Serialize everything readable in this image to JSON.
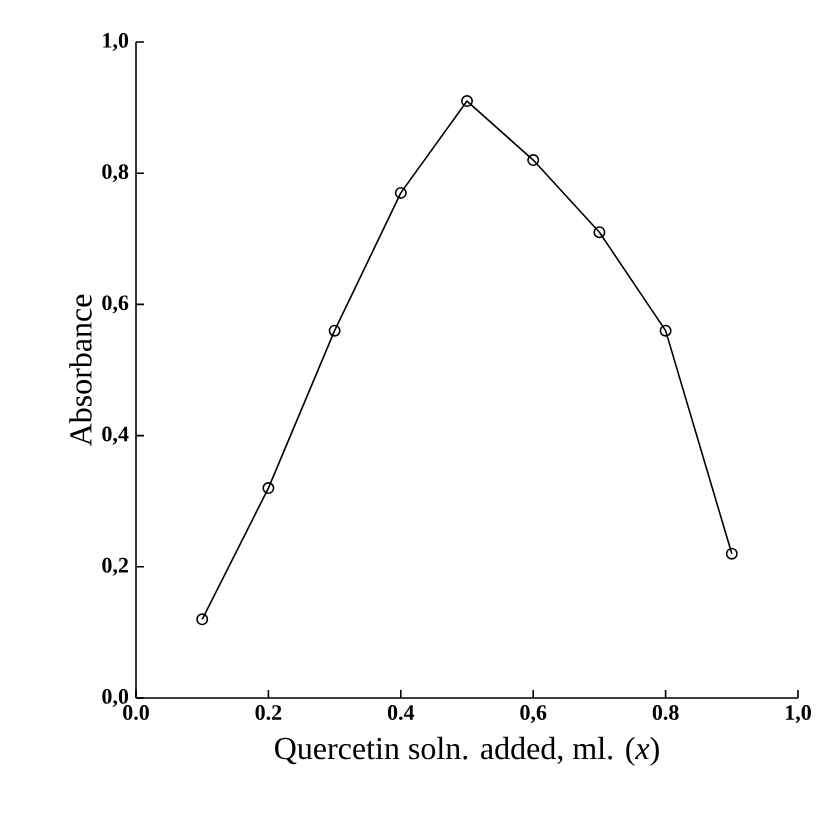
{
  "chart_data": {
    "type": "line",
    "xlabel": "Quercetin soln. added, ml. (*x*)",
    "ylabel": "Absorbance",
    "x": [
      0.1,
      0.2,
      0.3,
      0.4,
      0.5,
      0.6,
      0.7,
      0.8,
      0.9
    ],
    "values": [
      0.12,
      0.32,
      0.56,
      0.77,
      0.91,
      0.82,
      0.71,
      0.56,
      0.22
    ],
    "color": "#000000",
    "marker": "circle",
    "line_style": "solid",
    "xlim": [
      0,
      1
    ],
    "ylim": [
      0,
      1
    ],
    "xticks": [
      {
        "value": 0,
        "label": "0.0"
      },
      {
        "value": 0.2,
        "label": "0.2"
      },
      {
        "value": 0.4,
        "label": "0.4"
      },
      {
        "value": 0.6,
        "label": "0,6"
      },
      {
        "value": 0.8,
        "label": "0.8"
      },
      {
        "value": 1,
        "label": "1,0"
      }
    ],
    "yticks": [
      {
        "value": 0,
        "label": "0,0"
      },
      {
        "value": 0.2,
        "label": "0,2"
      },
      {
        "value": 0.4,
        "label": "0,4"
      },
      {
        "value": 0.6,
        "label": "0,6"
      },
      {
        "value": 0.8,
        "label": "0,8"
      },
      {
        "value": 1,
        "label": "1,0"
      }
    ]
  }
}
